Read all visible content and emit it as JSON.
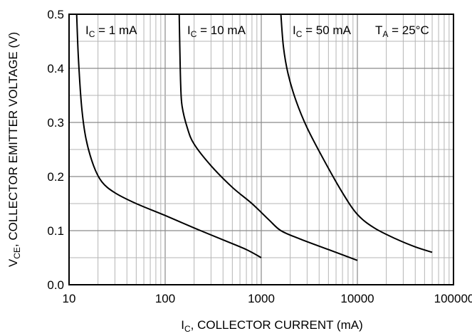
{
  "chart_data": {
    "type": "line",
    "x_scale": "log",
    "xlim": [
      10,
      100000
    ],
    "ylim": [
      0.0,
      0.5
    ],
    "grid": true,
    "xlabel": {
      "main": "I",
      "sub": "C",
      "rest": ", COLLECTOR CURRENT (mA)"
    },
    "ylabel": {
      "main": "V",
      "sub": "CE",
      "rest": ", COLLECTOR EMITTER VOLTAGE (V)"
    },
    "x_tick_labels": [
      "10",
      "100",
      "1000",
      "10000",
      "100000"
    ],
    "x_ticks": [
      10,
      100,
      1000,
      10000,
      100000
    ],
    "y_tick_labels": [
      "0.0",
      "0.1",
      "0.2",
      "0.3",
      "0.4",
      "0.5"
    ],
    "y_ticks": [
      0.0,
      0.1,
      0.2,
      0.3,
      0.4,
      0.5
    ],
    "series": [
      {
        "points": [
          [
            12,
            0.5
          ],
          [
            12.5,
            0.42
          ],
          [
            13.5,
            0.33
          ],
          [
            15,
            0.27
          ],
          [
            18,
            0.22
          ],
          [
            22,
            0.19
          ],
          [
            30,
            0.17
          ],
          [
            50,
            0.15
          ],
          [
            100,
            0.128
          ],
          [
            200,
            0.105
          ],
          [
            400,
            0.083
          ],
          [
            700,
            0.065
          ],
          [
            1000,
            0.05
          ]
        ]
      },
      {
        "points": [
          [
            140,
            0.5
          ],
          [
            142,
            0.44
          ],
          [
            145,
            0.37
          ],
          [
            150,
            0.33
          ],
          [
            170,
            0.29
          ],
          [
            200,
            0.26
          ],
          [
            300,
            0.22
          ],
          [
            500,
            0.18
          ],
          [
            800,
            0.15
          ],
          [
            1200,
            0.12
          ],
          [
            1600,
            0.1
          ],
          [
            2500,
            0.085
          ],
          [
            5000,
            0.065
          ],
          [
            10000,
            0.045
          ]
        ]
      },
      {
        "points": [
          [
            1600,
            0.5
          ],
          [
            1700,
            0.44
          ],
          [
            1900,
            0.39
          ],
          [
            2300,
            0.34
          ],
          [
            3000,
            0.29
          ],
          [
            4500,
            0.23
          ],
          [
            7000,
            0.17
          ],
          [
            10000,
            0.13
          ],
          [
            15000,
            0.105
          ],
          [
            25000,
            0.085
          ],
          [
            40000,
            0.07
          ],
          [
            60000,
            0.06
          ]
        ]
      }
    ],
    "annotations": [
      {
        "main": "I",
        "sub": "C",
        "rest": " = 1 mA"
      },
      {
        "main": "I",
        "sub": "C",
        "rest": " = 10 mA"
      },
      {
        "main": "I",
        "sub": "C",
        "rest": " = 50 mA"
      },
      {
        "main": "T",
        "sub": "A",
        "rest": " = 25°C"
      }
    ]
  }
}
